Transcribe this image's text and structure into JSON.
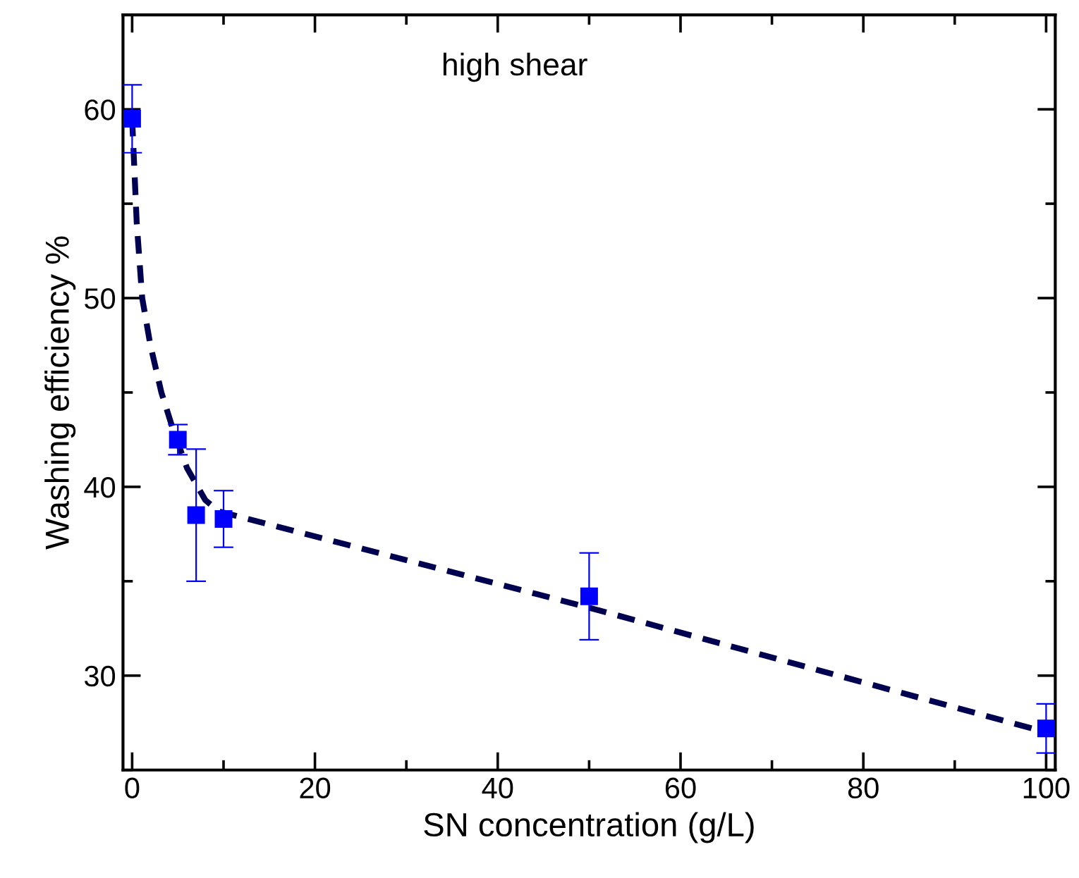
{
  "chart_data": {
    "type": "scatter",
    "xlabel": "SN concentration (g/L)",
    "ylabel": "Washing efficiency %",
    "annotations": [
      "high shear"
    ],
    "xlim": [
      -1,
      101
    ],
    "ylim": [
      25,
      65
    ],
    "xticks": [
      0,
      20,
      40,
      60,
      80,
      100
    ],
    "yticks": [
      30,
      40,
      50,
      60
    ],
    "grid": false,
    "marker": "square",
    "series": [
      {
        "color": "#0000ff",
        "x": [
          0,
          5,
          7,
          10,
          50,
          100
        ],
        "values": [
          59.5,
          42.5,
          38.5,
          38.3,
          34.2,
          27.2
        ],
        "errors": [
          1.8,
          0.8,
          3.5,
          1.5,
          2.3,
          1.3
        ]
      },
      {
        "type": "line",
        "color": "#000050",
        "line_style": "dashed",
        "marker": "none",
        "x": [
          0,
          0.5,
          1.1,
          2,
          3.2,
          4.5,
          6,
          8,
          9.5,
          50,
          100
        ],
        "values": [
          59.5,
          54,
          50,
          47.5,
          45,
          43,
          41,
          39.3,
          38.7,
          33.6,
          27.0
        ]
      }
    ]
  }
}
